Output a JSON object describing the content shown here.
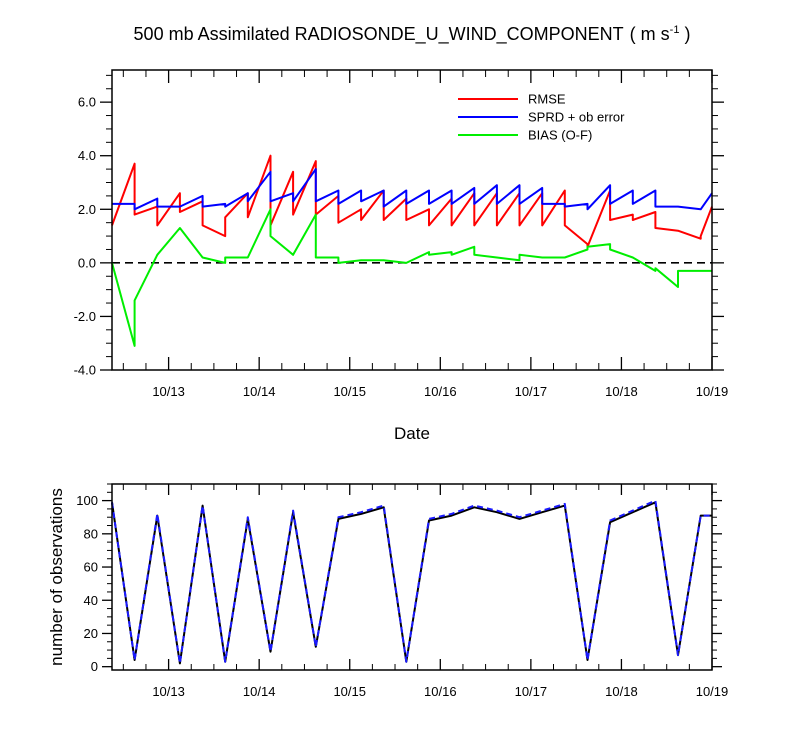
{
  "chart_data": [
    {
      "type": "line",
      "title": "500 mb Assimilated RADIOSONDE_U_WIND_COMPONENT",
      "title_units": {
        "open": "( m s",
        "sup": "-1",
        "close": " )"
      },
      "xlabel": "Date",
      "ylabel": "",
      "x_ticks": [
        "10/13",
        "10/14",
        "10/15",
        "10/16",
        "10/17",
        "10/18",
        "10/19"
      ],
      "x_tick_values": [
        13.0,
        14.0,
        15.0,
        16.0,
        17.0,
        18.0,
        19.0
      ],
      "xlim": [
        12.375,
        19.0
      ],
      "ylim": [
        -4.0,
        7.2
      ],
      "y_ticks": [
        "-4.0",
        "-2.0",
        "0.0",
        "2.0",
        "4.0",
        "6.0"
      ],
      "y_tick_values": [
        -4,
        -2,
        0,
        2,
        4,
        6
      ],
      "zero_line": "dashed",
      "legend_position": "top-right",
      "series": [
        {
          "name": "RMSE",
          "color": "#ff0000",
          "x": [
            12.375,
            12.625,
            12.625,
            12.875,
            12.875,
            13.125,
            13.125,
            13.375,
            13.375,
            13.625,
            13.625,
            13.875,
            13.875,
            14.125,
            14.125,
            14.375,
            14.375,
            14.625,
            14.625,
            14.875,
            14.875,
            15.125,
            15.125,
            15.375,
            15.375,
            15.625,
            15.625,
            15.875,
            15.875,
            16.125,
            16.125,
            16.375,
            16.375,
            16.625,
            16.625,
            16.875,
            16.875,
            17.125,
            17.125,
            17.375,
            17.375,
            17.625,
            17.625,
            17.875,
            17.875,
            18.125,
            18.125,
            18.375,
            18.375,
            18.625,
            18.625,
            18.875,
            18.875,
            19.0
          ],
          "values": [
            1.4,
            3.7,
            1.8,
            2.1,
            1.4,
            2.6,
            1.9,
            2.3,
            1.4,
            1.0,
            1.7,
            2.6,
            1.7,
            4.0,
            1.4,
            3.4,
            1.8,
            3.8,
            1.8,
            2.5,
            1.5,
            2.0,
            1.6,
            2.7,
            1.6,
            2.4,
            1.6,
            2.0,
            1.4,
            2.4,
            1.4,
            2.6,
            1.4,
            2.6,
            1.4,
            2.6,
            1.4,
            2.6,
            1.4,
            2.7,
            1.4,
            0.7,
            0.6,
            2.7,
            1.6,
            1.8,
            1.6,
            1.9,
            1.3,
            1.2,
            1.2,
            0.9,
            1.0,
            2.1
          ]
        },
        {
          "name": "SPRD + ob error",
          "color": "#0000ff",
          "x": [
            12.375,
            12.625,
            12.625,
            12.875,
            12.875,
            13.125,
            13.125,
            13.375,
            13.375,
            13.625,
            13.625,
            13.875,
            13.875,
            14.125,
            14.125,
            14.375,
            14.375,
            14.625,
            14.625,
            14.875,
            14.875,
            15.125,
            15.125,
            15.375,
            15.375,
            15.625,
            15.625,
            15.875,
            15.875,
            16.125,
            16.125,
            16.375,
            16.375,
            16.625,
            16.625,
            16.875,
            16.875,
            17.125,
            17.125,
            17.375,
            17.375,
            17.625,
            17.625,
            17.875,
            17.875,
            18.125,
            18.125,
            18.375,
            18.375,
            18.625,
            18.625,
            18.875,
            18.875,
            19.0
          ],
          "values": [
            2.2,
            2.2,
            2.0,
            2.4,
            2.1,
            2.1,
            2.1,
            2.5,
            2.1,
            2.2,
            2.1,
            2.6,
            2.3,
            3.4,
            2.3,
            2.6,
            2.3,
            3.5,
            2.3,
            2.7,
            2.2,
            2.7,
            2.3,
            2.7,
            2.1,
            2.7,
            2.2,
            2.7,
            2.2,
            2.7,
            2.2,
            2.8,
            2.2,
            2.9,
            2.2,
            2.9,
            2.2,
            2.8,
            2.2,
            2.2,
            2.1,
            2.2,
            2.0,
            2.9,
            2.2,
            2.7,
            2.2,
            2.7,
            2.1,
            2.1,
            2.1,
            2.0,
            2.0,
            2.6
          ]
        },
        {
          "name": "BIAS (O-F)",
          "color": "#00ee00",
          "x": [
            12.375,
            12.625,
            12.625,
            12.875,
            12.875,
            13.125,
            13.125,
            13.375,
            13.375,
            13.625,
            13.625,
            13.875,
            13.875,
            14.125,
            14.125,
            14.375,
            14.375,
            14.625,
            14.625,
            14.875,
            14.875,
            15.125,
            15.125,
            15.375,
            15.375,
            15.625,
            15.625,
            15.875,
            15.875,
            16.125,
            16.125,
            16.375,
            16.375,
            16.625,
            16.625,
            16.875,
            16.875,
            17.125,
            17.125,
            17.375,
            17.375,
            17.625,
            17.625,
            17.875,
            17.875,
            18.125,
            18.125,
            18.375,
            18.375,
            18.625,
            18.625,
            18.875,
            18.875,
            19.0
          ],
          "values": [
            0.0,
            -3.1,
            -1.4,
            0.3,
            0.3,
            1.3,
            1.3,
            0.2,
            0.2,
            0.0,
            0.2,
            0.2,
            0.2,
            2.0,
            1.0,
            0.3,
            0.3,
            1.8,
            0.2,
            0.2,
            0.0,
            0.1,
            0.1,
            0.1,
            0.1,
            0.0,
            0.0,
            0.4,
            0.3,
            0.4,
            0.3,
            0.6,
            0.3,
            0.2,
            0.2,
            0.1,
            0.3,
            0.2,
            0.2,
            0.2,
            0.2,
            0.5,
            0.6,
            0.7,
            0.5,
            0.2,
            0.2,
            -0.3,
            -0.2,
            -0.9,
            -0.3,
            -0.3,
            -0.3,
            -0.3
          ]
        }
      ]
    },
    {
      "type": "line",
      "title": "",
      "xlabel": "",
      "ylabel": "number of observations",
      "x_ticks": [
        "10/13",
        "10/14",
        "10/15",
        "10/16",
        "10/17",
        "10/18",
        "10/19"
      ],
      "x_tick_values": [
        13.0,
        14.0,
        15.0,
        16.0,
        17.0,
        18.0,
        19.0
      ],
      "xlim": [
        12.375,
        19.0
      ],
      "ylim": [
        -2,
        110
      ],
      "y_ticks": [
        "0",
        "20",
        "40",
        "60",
        "80",
        "100"
      ],
      "y_tick_values": [
        0,
        20,
        40,
        60,
        80,
        100
      ],
      "series": [
        {
          "color": "#000000",
          "style": "solid",
          "x": [
            12.375,
            12.625,
            12.875,
            13.125,
            13.375,
            13.625,
            13.875,
            14.125,
            14.375,
            14.625,
            14.875,
            15.125,
            15.375,
            15.625,
            15.875,
            16.125,
            16.375,
            16.625,
            16.875,
            17.125,
            17.375,
            17.625,
            17.875,
            18.125,
            18.375,
            18.625,
            18.875,
            19.0
          ],
          "values": [
            99,
            4,
            91,
            2,
            97,
            3,
            89,
            9,
            93,
            12,
            89,
            92,
            96,
            3,
            88,
            91,
            96,
            93,
            89,
            93,
            97,
            4,
            87,
            93,
            99,
            7,
            91,
            91
          ]
        },
        {
          "color": "#1a1aff",
          "style": "dashed",
          "x": [
            12.375,
            12.625,
            12.875,
            13.125,
            13.375,
            13.625,
            13.875,
            14.125,
            14.375,
            14.625,
            14.875,
            15.125,
            15.375,
            15.625,
            15.875,
            16.125,
            16.375,
            16.625,
            16.875,
            17.125,
            17.375,
            17.625,
            17.875,
            18.125,
            18.375,
            18.625,
            18.875,
            19.0
          ],
          "values": [
            99,
            4,
            92,
            2,
            97,
            3,
            90,
            9,
            94,
            12,
            90,
            93,
            97,
            3,
            89,
            92,
            97,
            94,
            90,
            94,
            98,
            4,
            88,
            94,
            100,
            7,
            91,
            91
          ]
        }
      ]
    }
  ]
}
